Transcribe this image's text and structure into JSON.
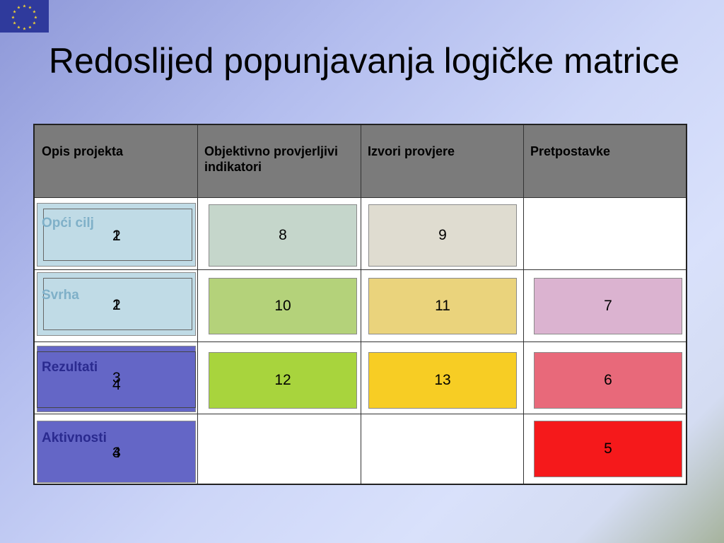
{
  "slide": {
    "title": "Redoslijed popunjavanja logičke matrice",
    "logo": "eu-flag"
  },
  "matrix": {
    "headers": [
      "Opis projekta",
      "Objektivno provjerljivi indikatori",
      "Izvori provjere",
      "Pretpostavke"
    ],
    "rows": [
      {
        "label": "Opći cilj",
        "label_color": "#7fb0c8",
        "nums": [
          "1",
          "2"
        ]
      },
      {
        "label": "Svrha",
        "label_color": "#7fb0c8",
        "nums": [
          "1",
          "2"
        ]
      },
      {
        "label": "Rezultati",
        "label_color": "#2a2a8f",
        "nums": [
          "3",
          "4"
        ]
      },
      {
        "label": "Aktivnosti",
        "label_color": "#2a2a8f",
        "nums": [
          "3",
          "4"
        ]
      }
    ],
    "cells": {
      "r1c2": "8",
      "r1c3": "9",
      "r2c2": "10",
      "r2c3": "11",
      "r2c4": "7",
      "r3c2": "12",
      "r3c3": "13",
      "r3c4": "6",
      "r4c4": "5"
    },
    "colors": {
      "r1c2": "#c5d6cb",
      "r1c3": "#dfdcd0",
      "r2c2": "#b4d27a",
      "r2c3": "#ead37c",
      "r2c4": "#dbb3d0",
      "r3c2": "#a8d43d",
      "r3c3": "#f7cd24",
      "r3c4": "#e8697a",
      "r4c4": "#f5191b",
      "light_blue": "#c0dbe6",
      "dark_blue": "#6466c6"
    }
  }
}
